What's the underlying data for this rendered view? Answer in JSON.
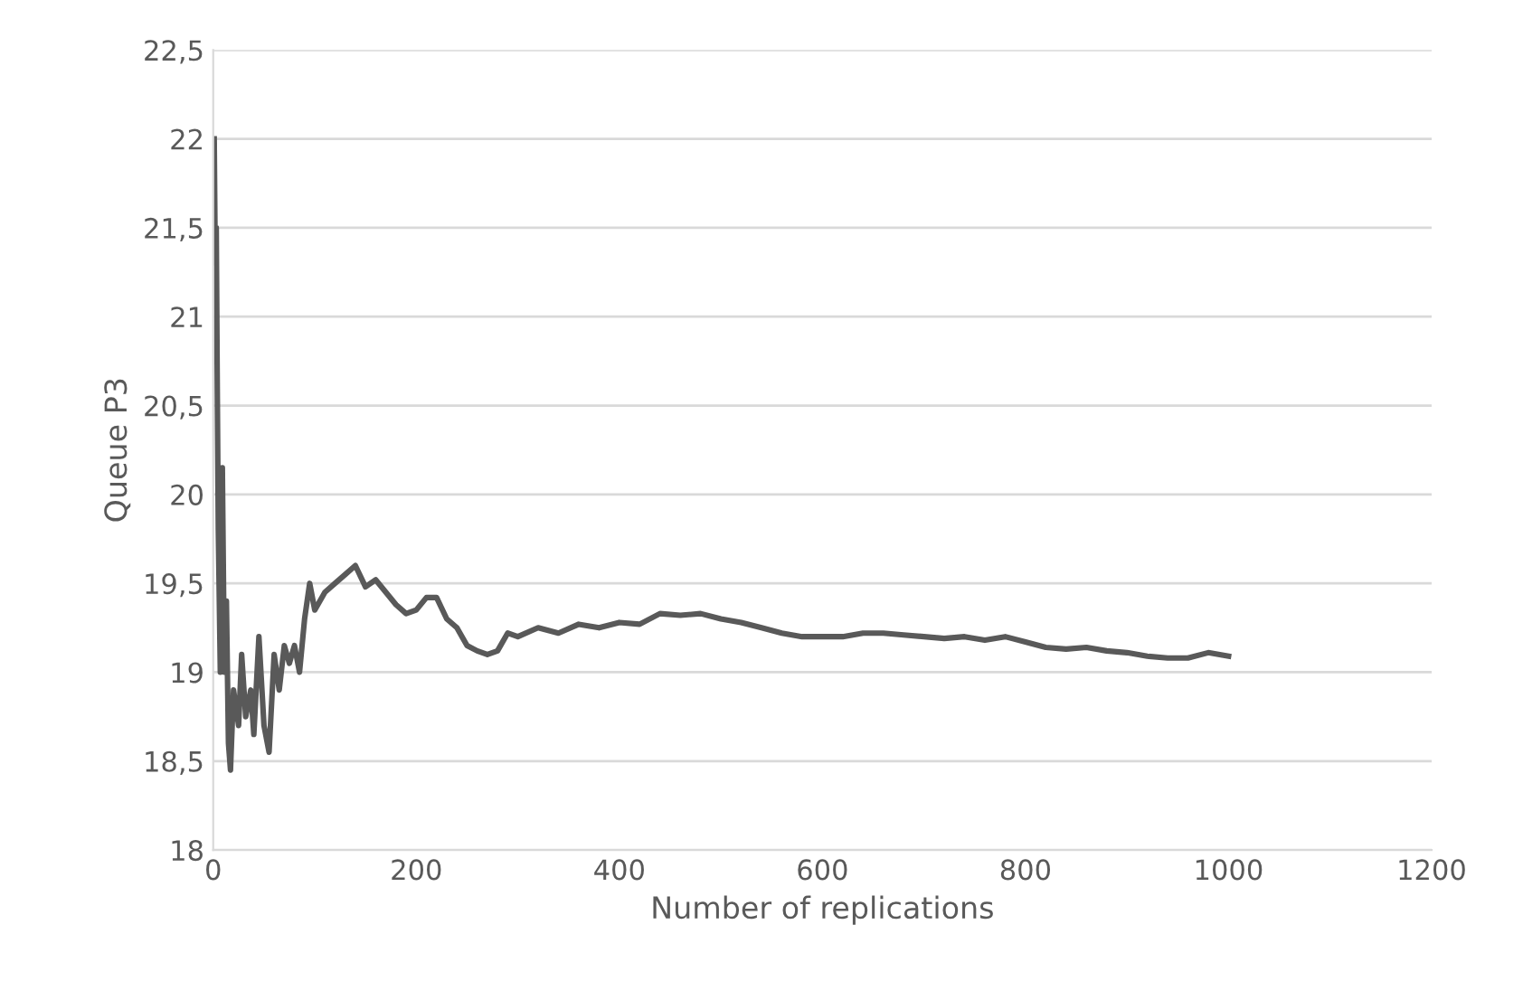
{
  "chart_data": {
    "type": "line",
    "xlabel": "Number of replications",
    "ylabel": "Queue P3",
    "xlim": [
      0,
      1200
    ],
    "xticks": [
      0,
      200,
      400,
      600,
      800,
      1000,
      1200
    ],
    "ylim": [
      18,
      22.5
    ],
    "yticks": [
      18,
      {
        "value": 18.5,
        "label": "18,5"
      },
      19,
      {
        "value": 19.5,
        "label": "19,5"
      },
      20,
      {
        "value": 20.5,
        "label": "20,5"
      },
      21,
      {
        "value": 21.5,
        "label": "21,5"
      },
      22,
      {
        "value": 22.5,
        "label": "22,5"
      }
    ],
    "grid": "y",
    "marker": "none",
    "line_style": "solid",
    "series": [
      {
        "color": "#595959",
        "x": [
          1,
          2,
          3,
          4,
          5,
          7,
          9,
          11,
          13,
          15,
          17,
          20,
          25,
          28,
          32,
          37,
          40,
          45,
          50,
          55,
          60,
          65,
          70,
          75,
          80,
          85,
          90,
          95,
          100,
          110,
          120,
          130,
          140,
          150,
          160,
          170,
          180,
          190,
          200,
          210,
          220,
          230,
          240,
          250,
          260,
          270,
          280,
          290,
          300,
          320,
          340,
          360,
          380,
          400,
          420,
          440,
          460,
          480,
          500,
          520,
          540,
          560,
          580,
          600,
          620,
          640,
          660,
          680,
          700,
          720,
          740,
          760,
          780,
          800,
          820,
          840,
          860,
          880,
          900,
          920,
          940,
          960,
          980,
          1000
        ],
        "values": [
          22.0,
          21.3,
          21.5,
          20.6,
          19.8,
          19.0,
          20.15,
          19.0,
          19.4,
          18.6,
          18.45,
          18.9,
          18.7,
          19.1,
          18.75,
          18.9,
          18.65,
          19.2,
          18.7,
          18.55,
          19.1,
          18.9,
          19.15,
          19.05,
          19.15,
          19.0,
          19.3,
          19.5,
          19.35,
          19.45,
          19.5,
          19.55,
          19.6,
          19.48,
          19.52,
          19.45,
          19.38,
          19.33,
          19.35,
          19.42,
          19.42,
          19.3,
          19.25,
          19.15,
          19.12,
          19.1,
          19.12,
          19.22,
          19.2,
          19.25,
          19.22,
          19.27,
          19.25,
          19.28,
          19.27,
          19.33,
          19.32,
          19.33,
          19.3,
          19.28,
          19.25,
          19.22,
          19.2,
          19.2,
          19.2,
          19.22,
          19.22,
          19.21,
          19.2,
          19.19,
          19.2,
          19.18,
          19.2,
          19.17,
          19.14,
          19.13,
          19.14,
          19.12,
          19.11,
          19.09,
          19.08,
          19.08,
          19.11,
          19.09
        ]
      }
    ]
  }
}
